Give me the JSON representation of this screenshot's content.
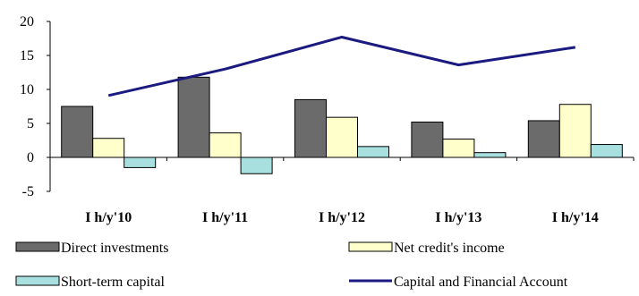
{
  "chart_data": {
    "type": "bar",
    "categories": [
      "I h/y'10",
      "I h/y'11",
      "I h/y'12",
      "I h/y'13",
      "I h/y'14"
    ],
    "ylim": [
      -5,
      20
    ],
    "yticks": [
      -5,
      0,
      5,
      10,
      15,
      20
    ],
    "series": [
      {
        "name": "Direct investments",
        "type": "bar",
        "color": "#6b6b6b",
        "values": [
          7.5,
          11.8,
          8.5,
          5.2,
          5.4
        ]
      },
      {
        "name": "Net credit's income",
        "type": "bar",
        "color": "#ffffcc",
        "values": [
          2.8,
          3.6,
          5.9,
          2.7,
          7.8
        ]
      },
      {
        "name": "Short-term capital",
        "type": "bar",
        "color": "#a8e0e0",
        "values": [
          -1.5,
          -2.4,
          1.6,
          0.7,
          1.9
        ]
      },
      {
        "name": "Capital and Financial Account",
        "type": "line",
        "color": "#1a1a80",
        "values": [
          9.1,
          13.0,
          17.7,
          13.6,
          16.2
        ]
      }
    ],
    "legend_position": "bottom",
    "grid": false
  }
}
